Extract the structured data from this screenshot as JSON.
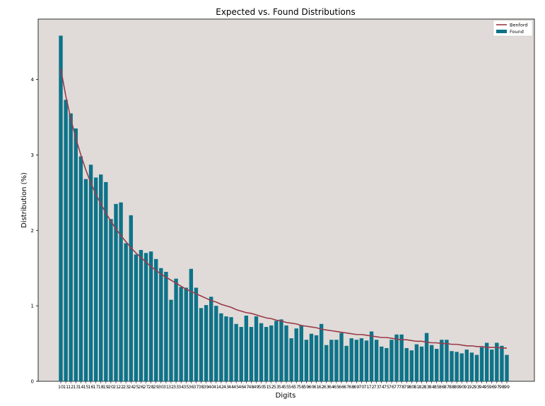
{
  "chart_data": {
    "type": "bar",
    "title": "Expected vs. Found Distributions",
    "xlabel": "Digits",
    "ylabel": "Distribution (%)",
    "ylim": [
      0,
      4.8
    ],
    "yticks": [
      0,
      1,
      2,
      3,
      4
    ],
    "grid": false,
    "legend_position": "top-right",
    "colors": {
      "plot_bg": "#e0dbd8",
      "bar": "#0d7389",
      "line": "#9a3b4a"
    },
    "x": [
      10,
      11,
      12,
      13,
      14,
      15,
      16,
      17,
      18,
      19,
      20,
      21,
      22,
      23,
      24,
      25,
      26,
      27,
      28,
      29,
      30,
      31,
      32,
      33,
      34,
      35,
      36,
      37,
      38,
      39,
      40,
      41,
      42,
      43,
      44,
      45,
      46,
      47,
      48,
      49,
      50,
      51,
      52,
      53,
      54,
      55,
      56,
      57,
      58,
      59,
      60,
      61,
      62,
      63,
      64,
      65,
      66,
      67,
      68,
      69,
      70,
      71,
      72,
      73,
      74,
      75,
      76,
      77,
      78,
      79,
      80,
      81,
      82,
      83,
      84,
      85,
      86,
      87,
      88,
      89,
      90,
      91,
      92,
      93,
      94,
      95,
      96,
      97,
      98,
      99
    ],
    "series": [
      {
        "name": "Found",
        "type": "bar",
        "values": [
          4.58,
          3.73,
          3.55,
          3.35,
          2.98,
          2.68,
          2.87,
          2.7,
          2.74,
          2.64,
          2.15,
          2.35,
          2.37,
          1.83,
          2.2,
          1.68,
          1.74,
          1.7,
          1.72,
          1.62,
          1.5,
          1.45,
          1.08,
          1.36,
          1.25,
          1.24,
          1.49,
          1.24,
          0.97,
          1.01,
          1.12,
          1.0,
          0.9,
          0.86,
          0.85,
          0.76,
          0.72,
          0.87,
          0.72,
          0.86,
          0.77,
          0.72,
          0.74,
          0.8,
          0.82,
          0.74,
          0.57,
          0.7,
          0.74,
          0.55,
          0.63,
          0.61,
          0.76,
          0.48,
          0.55,
          0.55,
          0.64,
          0.47,
          0.57,
          0.55,
          0.57,
          0.54,
          0.66,
          0.55,
          0.46,
          0.44,
          0.55,
          0.62,
          0.62,
          0.44,
          0.41,
          0.49,
          0.46,
          0.64,
          0.48,
          0.43,
          0.55,
          0.55,
          0.4,
          0.39,
          0.37,
          0.42,
          0.38,
          0.35,
          0.45,
          0.51,
          0.42,
          0.51,
          0.47,
          0.35
        ]
      },
      {
        "name": "Benford",
        "type": "line",
        "values": [
          4.14,
          3.78,
          3.48,
          3.22,
          3.0,
          2.8,
          2.63,
          2.48,
          2.35,
          2.23,
          2.12,
          2.02,
          1.93,
          1.85,
          1.77,
          1.7,
          1.64,
          1.58,
          1.52,
          1.47,
          1.42,
          1.38,
          1.34,
          1.3,
          1.26,
          1.22,
          1.19,
          1.16,
          1.13,
          1.1,
          1.07,
          1.05,
          1.02,
          1.0,
          0.98,
          0.95,
          0.93,
          0.91,
          0.9,
          0.88,
          0.86,
          0.84,
          0.83,
          0.81,
          0.8,
          0.78,
          0.77,
          0.76,
          0.74,
          0.73,
          0.72,
          0.71,
          0.69,
          0.68,
          0.67,
          0.66,
          0.65,
          0.64,
          0.63,
          0.62,
          0.62,
          0.61,
          0.6,
          0.59,
          0.58,
          0.58,
          0.57,
          0.56,
          0.55,
          0.55,
          0.54,
          0.53,
          0.53,
          0.52,
          0.51,
          0.51,
          0.5,
          0.5,
          0.49,
          0.49,
          0.48,
          0.47,
          0.47,
          0.46,
          0.46,
          0.45,
          0.45,
          0.45,
          0.44,
          0.44
        ]
      }
    ]
  }
}
